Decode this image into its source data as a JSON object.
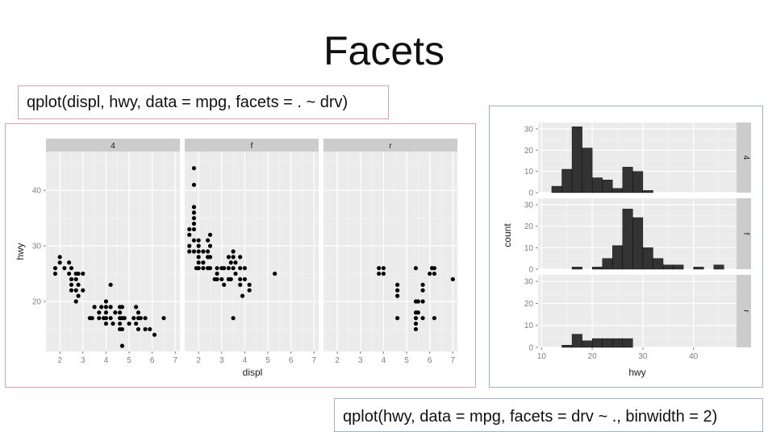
{
  "slide": {
    "title": "Facets",
    "code_top": "qplot(displ, hwy, data = mpg, facets = . ~ drv)",
    "code_bottom": "qplot(hwy, data = mpg, facets = drv ~ ., binwidth = 2)"
  },
  "colors": {
    "panel_bg": "#ebebeb",
    "strip_bg": "#cccccc",
    "grid_major": "#ffffff",
    "grid_minor": "#f5f5f5",
    "mark": "#000000",
    "bar_fill": "#333333",
    "axis_text": "#7f7f7f",
    "border_left": "#d9a0ae",
    "border_right": "#9fb3cc"
  },
  "chart_data": [
    {
      "type": "scatter",
      "xlabel": "displ",
      "ylabel": "hwy",
      "xlim": [
        1.4,
        7.2
      ],
      "ylim": [
        11,
        47
      ],
      "xticks": [
        2,
        3,
        4,
        5,
        6,
        7
      ],
      "yticks": [
        20,
        30,
        40
      ],
      "grid": true,
      "facets": [
        {
          "label": "4",
          "points": [
            [
              1.8,
              26
            ],
            [
              1.8,
              25
            ],
            [
              2.0,
              28
            ],
            [
              2.0,
              27
            ],
            [
              2.2,
              26
            ],
            [
              2.4,
              25
            ],
            [
              2.4,
              27
            ],
            [
              2.5,
              26
            ],
            [
              2.5,
              24
            ],
            [
              2.5,
              23
            ],
            [
              2.5,
              22
            ],
            [
              2.7,
              25
            ],
            [
              2.7,
              24
            ],
            [
              2.7,
              22
            ],
            [
              2.7,
              20
            ],
            [
              2.8,
              25
            ],
            [
              2.8,
              23
            ],
            [
              2.8,
              21
            ],
            [
              3.0,
              25
            ],
            [
              3.0,
              22
            ],
            [
              3.3,
              17
            ],
            [
              3.4,
              17
            ],
            [
              3.5,
              19
            ],
            [
              3.7,
              18
            ],
            [
              3.7,
              17
            ],
            [
              3.8,
              19
            ],
            [
              3.9,
              17
            ],
            [
              4.0,
              20
            ],
            [
              4.0,
              19
            ],
            [
              4.0,
              18
            ],
            [
              4.0,
              17
            ],
            [
              4.0,
              16
            ],
            [
              4.2,
              23
            ],
            [
              4.2,
              19
            ],
            [
              4.2,
              17
            ],
            [
              4.3,
              16
            ],
            [
              4.4,
              18
            ],
            [
              4.6,
              19
            ],
            [
              4.6,
              18
            ],
            [
              4.6,
              17
            ],
            [
              4.6,
              16
            ],
            [
              4.6,
              15
            ],
            [
              4.7,
              19
            ],
            [
              4.7,
              17
            ],
            [
              4.7,
              15
            ],
            [
              4.7,
              12
            ],
            [
              4.8,
              17
            ],
            [
              5.0,
              16
            ],
            [
              5.2,
              17
            ],
            [
              5.3,
              19
            ],
            [
              5.3,
              16
            ],
            [
              5.4,
              18
            ],
            [
              5.4,
              17
            ],
            [
              5.4,
              15
            ],
            [
              5.5,
              17
            ],
            [
              5.7,
              15
            ],
            [
              5.7,
              17
            ],
            [
              5.9,
              15
            ],
            [
              6.1,
              14
            ],
            [
              6.5,
              17
            ]
          ]
        },
        {
          "label": "f",
          "points": [
            [
              1.6,
              33
            ],
            [
              1.6,
              32
            ],
            [
              1.6,
              30
            ],
            [
              1.6,
              29
            ],
            [
              1.8,
              44
            ],
            [
              1.8,
              41
            ],
            [
              1.8,
              37
            ],
            [
              1.8,
              36
            ],
            [
              1.8,
              35
            ],
            [
              1.8,
              34
            ],
            [
              1.8,
              33
            ],
            [
              1.8,
              31
            ],
            [
              1.8,
              29
            ],
            [
              1.9,
              26
            ],
            [
              2.0,
              31
            ],
            [
              2.0,
              30
            ],
            [
              2.0,
              29
            ],
            [
              2.0,
              28
            ],
            [
              2.0,
              27
            ],
            [
              2.0,
              26
            ],
            [
              2.2,
              29
            ],
            [
              2.2,
              26
            ],
            [
              2.2,
              27
            ],
            [
              2.4,
              31
            ],
            [
              2.4,
              29
            ],
            [
              2.4,
              28
            ],
            [
              2.4,
              26
            ],
            [
              2.5,
              32
            ],
            [
              2.5,
              30
            ],
            [
              2.5,
              28
            ],
            [
              2.5,
              26
            ],
            [
              2.7,
              24
            ],
            [
              2.8,
              26
            ],
            [
              2.8,
              25
            ],
            [
              2.8,
              24
            ],
            [
              3.0,
              26
            ],
            [
              3.0,
              24
            ],
            [
              3.1,
              26
            ],
            [
              3.1,
              23
            ],
            [
              3.3,
              28
            ],
            [
              3.3,
              26
            ],
            [
              3.3,
              24
            ],
            [
              3.4,
              27
            ],
            [
              3.4,
              24
            ],
            [
              3.5,
              29
            ],
            [
              3.5,
              28
            ],
            [
              3.5,
              26
            ],
            [
              3.5,
              17
            ],
            [
              3.6,
              27
            ],
            [
              3.6,
              25
            ],
            [
              3.8,
              28
            ],
            [
              3.8,
              26
            ],
            [
              3.8,
              24
            ],
            [
              3.8,
              23
            ],
            [
              3.9,
              21
            ],
            [
              4.0,
              26
            ],
            [
              4.0,
              24
            ],
            [
              4.2,
              22
            ],
            [
              4.2,
              23
            ],
            [
              5.3,
              25
            ]
          ]
        },
        {
          "label": "r",
          "points": [
            [
              3.8,
              26
            ],
            [
              3.8,
              25
            ],
            [
              4.0,
              26
            ],
            [
              4.0,
              25
            ],
            [
              4.6,
              23
            ],
            [
              4.6,
              22
            ],
            [
              4.6,
              21
            ],
            [
              4.6,
              17
            ],
            [
              5.4,
              26
            ],
            [
              5.4,
              20
            ],
            [
              5.4,
              18
            ],
            [
              5.4,
              17
            ],
            [
              5.4,
              16
            ],
            [
              5.4,
              15
            ],
            [
              5.5,
              20
            ],
            [
              5.5,
              18
            ],
            [
              5.7,
              23
            ],
            [
              5.7,
              22
            ],
            [
              5.7,
              20
            ],
            [
              5.7,
              17
            ],
            [
              6.0,
              25
            ],
            [
              6.1,
              26
            ],
            [
              6.2,
              26
            ],
            [
              6.2,
              25
            ],
            [
              6.2,
              17
            ],
            [
              7.0,
              24
            ]
          ]
        }
      ]
    },
    {
      "type": "bar",
      "subtype": "histogram",
      "xlabel": "hwy",
      "ylabel": "count",
      "xlim": [
        9.3,
        48.5
      ],
      "ylim": [
        0,
        33
      ],
      "xticks": [
        10,
        20,
        30,
        40
      ],
      "yticks": [
        0,
        10,
        20,
        30
      ],
      "binwidth": 2,
      "grid": true,
      "facets": [
        {
          "label": "4",
          "bins": [
            {
              "x0": 12,
              "count": 3
            },
            {
              "x0": 14,
              "count": 11
            },
            {
              "x0": 16,
              "count": 31
            },
            {
              "x0": 18,
              "count": 21
            },
            {
              "x0": 20,
              "count": 7
            },
            {
              "x0": 22,
              "count": 6
            },
            {
              "x0": 24,
              "count": 2
            },
            {
              "x0": 26,
              "count": 12
            },
            {
              "x0": 28,
              "count": 10
            },
            {
              "x0": 30,
              "count": 1
            }
          ]
        },
        {
          "label": "f",
          "bins": [
            {
              "x0": 16,
              "count": 1
            },
            {
              "x0": 20,
              "count": 1
            },
            {
              "x0": 22,
              "count": 5
            },
            {
              "x0": 24,
              "count": 11
            },
            {
              "x0": 26,
              "count": 28
            },
            {
              "x0": 28,
              "count": 24
            },
            {
              "x0": 30,
              "count": 10
            },
            {
              "x0": 32,
              "count": 5
            },
            {
              "x0": 34,
              "count": 2
            },
            {
              "x0": 36,
              "count": 2
            },
            {
              "x0": 40,
              "count": 1
            },
            {
              "x0": 44,
              "count": 2
            }
          ]
        },
        {
          "label": "r",
          "bins": [
            {
              "x0": 14,
              "count": 1
            },
            {
              "x0": 16,
              "count": 6
            },
            {
              "x0": 18,
              "count": 3
            },
            {
              "x0": 20,
              "count": 4
            },
            {
              "x0": 22,
              "count": 4
            },
            {
              "x0": 24,
              "count": 4
            },
            {
              "x0": 26,
              "count": 4
            }
          ]
        }
      ]
    }
  ]
}
